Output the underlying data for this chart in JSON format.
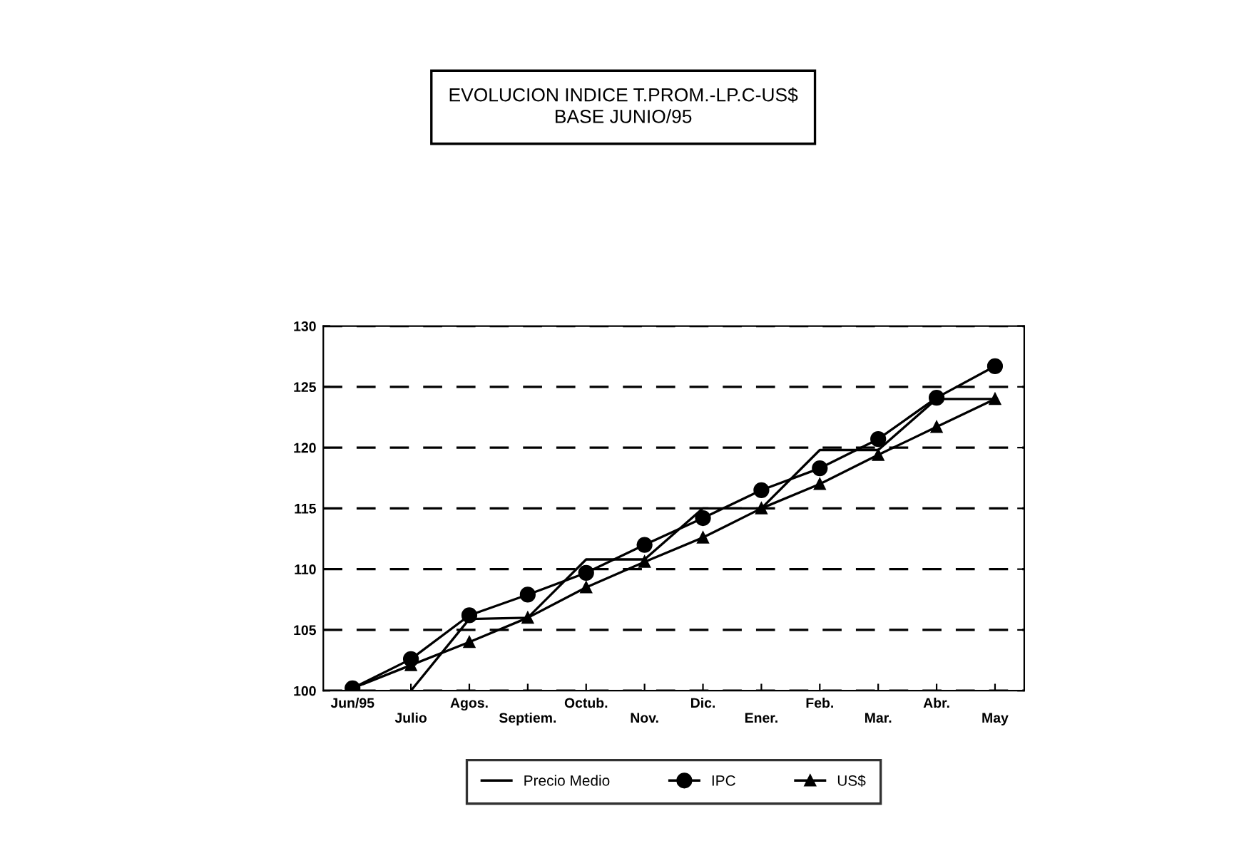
{
  "chart_data": {
    "type": "line",
    "title": "EVOLUCION INDICE T.PROM.-LP.C-US$",
    "subtitle": "BASE JUNIO/95",
    "categories": [
      "Jun/95",
      "Julio",
      "Agos.",
      "Septiem.",
      "Octub.",
      "Nov.",
      "Dic.",
      "Ener.",
      "Feb.",
      "Mar.",
      "Abr.",
      "May"
    ],
    "series": [
      {
        "name": "Precio Medio",
        "color": "#000000",
        "marker": "none",
        "values": [
          null,
          100,
          105.9,
          106,
          110.8,
          110.8,
          115,
          115,
          119.8,
          119.8,
          124,
          124
        ]
      },
      {
        "name": "IPC",
        "color": "#000000",
        "marker": "circle",
        "values": [
          100.2,
          102.6,
          106.2,
          107.9,
          109.7,
          112.0,
          114.2,
          116.5,
          118.3,
          120.7,
          124.1,
          126.7
        ]
      },
      {
        "name": "US$",
        "color": "#000000",
        "marker": "triangle",
        "values": [
          100.2,
          102.1,
          104.0,
          106.0,
          108.5,
          110.6,
          112.6,
          115.0,
          117.0,
          119.4,
          121.7,
          124.0
        ]
      }
    ],
    "ylim": [
      100,
      130
    ],
    "yticks": [
      100,
      105,
      110,
      115,
      120,
      125,
      130
    ],
    "grid": "y",
    "legend": "bottom",
    "line_style": "solid"
  }
}
